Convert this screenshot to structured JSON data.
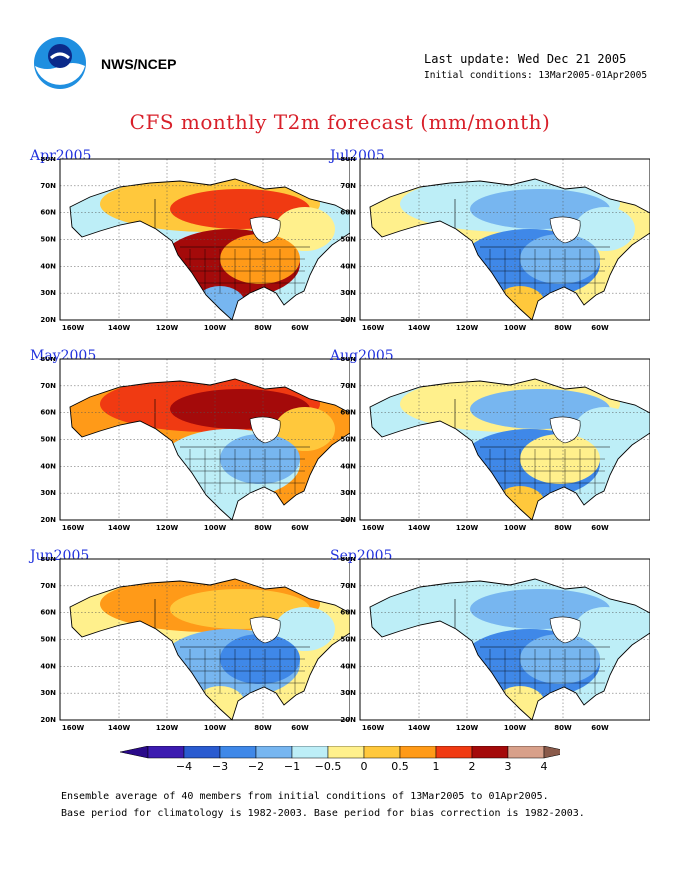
{
  "header": {
    "agency": "NWS/NCEP",
    "last_update": "Last update: Wed Dec 21 2005",
    "initial_conditions": "Initial conditions: 13Mar2005-01Apr2005",
    "logo_icon": "noaa-logo-icon"
  },
  "title": "CFS monthly T2m forecast (mm/month)",
  "axes": {
    "lat_labels": [
      "80N",
      "70N",
      "60N",
      "50N",
      "40N",
      "30N",
      "20N"
    ],
    "lon_labels": [
      "160W",
      "140W",
      "120W",
      "100W",
      "80W",
      "60W"
    ]
  },
  "panels": [
    {
      "label": "Apr2005"
    },
    {
      "label": "Jul2005"
    },
    {
      "label": "May2005"
    },
    {
      "label": "Aug2005"
    },
    {
      "label": "Jun2005"
    },
    {
      "label": "Sep2005"
    }
  ],
  "colorbar": {
    "tick_labels": [
      "-4",
      "-3",
      "-2",
      "-1",
      "-0.5",
      "0",
      "0.5",
      "1",
      "2",
      "3",
      "4"
    ],
    "colors": [
      "#3c1bb0",
      "#2a5bd0",
      "#3f88e8",
      "#77b6f0",
      "#bdeef7",
      "#fff08c",
      "#ffc83c",
      "#ff9a18",
      "#f03a12",
      "#a40a0a",
      "#d8a08a"
    ]
  },
  "footer": {
    "line1": "Ensemble average of 40 members from initial conditions of 13Mar2005 to 01Apr2005.",
    "line2": "Base period for climatology is 1982-2003. Base period for bias correction is 1982-2003."
  }
}
